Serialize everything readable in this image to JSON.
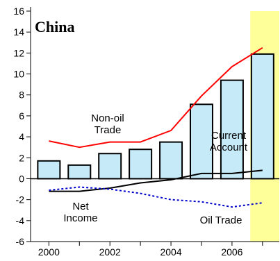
{
  "chart_data": {
    "type": "bar",
    "title": "China",
    "x": [
      2000,
      2001,
      2002,
      2003,
      2004,
      2005,
      2006,
      2007
    ],
    "x_ticks": [
      "2000",
      "2002",
      "2004",
      "2006"
    ],
    "y_ticks": [
      "16",
      "14",
      "12",
      "10",
      "8",
      "6",
      "4",
      "2",
      "0",
      "-2",
      "-4",
      "-6"
    ],
    "ylim": [
      -6,
      16
    ],
    "xlim": [
      1999.4,
      2007.55
    ],
    "grid": false,
    "highlight": {
      "x_from": 2006.6,
      "x_to": 2007.55,
      "color": "#ffff99"
    },
    "series": [
      {
        "name": "Current Account",
        "kind": "bar",
        "color": "#c6eaf8",
        "values": [
          1.7,
          1.3,
          2.4,
          2.8,
          3.5,
          7.1,
          9.4,
          11.9
        ]
      },
      {
        "name": "Non-oil Trade",
        "kind": "line",
        "color": "#ff0000",
        "dash": false,
        "values": [
          3.6,
          3.0,
          3.5,
          3.5,
          4.6,
          7.9,
          10.7,
          12.5
        ]
      },
      {
        "name": "Net Income",
        "kind": "line",
        "color": "#000000",
        "dash": false,
        "values": [
          -1.2,
          -1.2,
          -0.9,
          -0.4,
          -0.1,
          0.5,
          0.5,
          0.8
        ]
      },
      {
        "name": "Oil Trade",
        "kind": "line",
        "color": "#0000cc",
        "dash": true,
        "values": [
          -1.1,
          -0.8,
          -1.0,
          -1.4,
          -2.0,
          -2.2,
          -2.7,
          -2.3
        ]
      }
    ],
    "annotations": {
      "non_oil_trade": [
        "Non-oil",
        "Trade"
      ],
      "current_account": [
        "Current",
        "Account"
      ],
      "net_income": [
        "Net",
        "Income"
      ],
      "oil_trade": [
        "Oil Trade"
      ]
    }
  }
}
